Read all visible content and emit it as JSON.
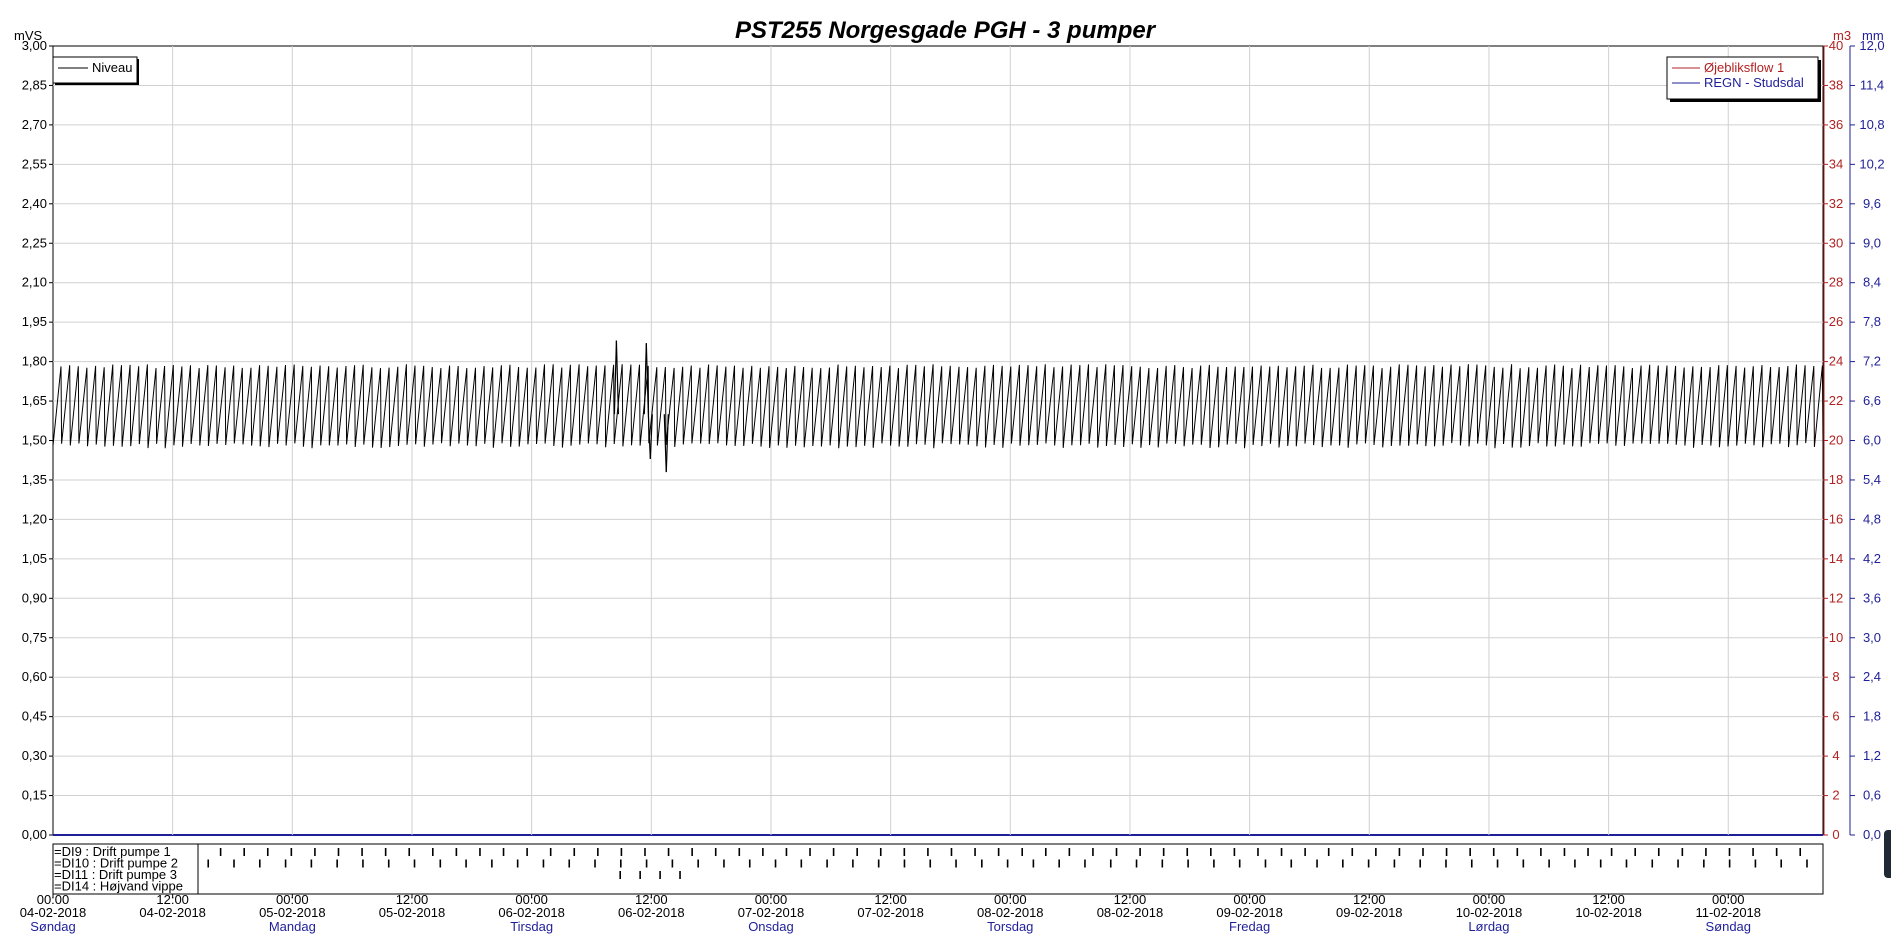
{
  "chart_data": {
    "type": "line",
    "title": "PST255 Norgesgade PGH - 3 pumper",
    "colors": {
      "level": "#000000",
      "flow": "#b22222",
      "rain": "#1f1f99",
      "grid": "#d0d0d0",
      "axis": "#000000"
    },
    "axes": {
      "left": {
        "unit": "mVS",
        "range": [
          0,
          3.0
        ],
        "ticks": [
          "3,00",
          "2,85",
          "2,70",
          "2,55",
          "2,40",
          "2,25",
          "2,10",
          "1,95",
          "1,80",
          "1,65",
          "1,50",
          "1,35",
          "1,20",
          "1,05",
          "0,90",
          "0,75",
          "0,60",
          "0,45",
          "0,30",
          "0,15",
          "0,00"
        ]
      },
      "right_flow": {
        "unit": "m3",
        "range": [
          0,
          40
        ],
        "ticks": [
          "40",
          "38",
          "36",
          "34",
          "32",
          "30",
          "28",
          "26",
          "24",
          "22",
          "20",
          "18",
          "16",
          "14",
          "12",
          "10",
          "8",
          "6",
          "4",
          "2",
          "0"
        ]
      },
      "right_rain": {
        "unit": "mm",
        "range": [
          0,
          12.0
        ],
        "ticks": [
          "12,0",
          "11,4",
          "10,8",
          "10,2",
          "9,6",
          "9,0",
          "8,4",
          "7,8",
          "7,2",
          "6,6",
          "6,0",
          "5,4",
          "4,8",
          "4,2",
          "3,6",
          "3,0",
          "2,4",
          "1,8",
          "1,2",
          "0,6",
          "0,0"
        ]
      }
    },
    "x": {
      "range_hours": [
        0,
        177.5
      ],
      "ticks": [
        {
          "time": "00:00",
          "date": "04-02-2018",
          "day": "Søndag"
        },
        {
          "time": "12:00",
          "date": "04-02-2018",
          "day": ""
        },
        {
          "time": "00:00",
          "date": "05-02-2018",
          "day": "Mandag"
        },
        {
          "time": "12:00",
          "date": "05-02-2018",
          "day": ""
        },
        {
          "time": "00:00",
          "date": "06-02-2018",
          "day": "Tirsdag"
        },
        {
          "time": "12:00",
          "date": "06-02-2018",
          "day": ""
        },
        {
          "time": "00:00",
          "date": "07-02-2018",
          "day": "Onsdag"
        },
        {
          "time": "12:00",
          "date": "07-02-2018",
          "day": ""
        },
        {
          "time": "00:00",
          "date": "08-02-2018",
          "day": "Torsdag"
        },
        {
          "time": "12:00",
          "date": "08-02-2018",
          "day": ""
        },
        {
          "time": "00:00",
          "date": "09-02-2018",
          "day": "Fredag"
        },
        {
          "time": "12:00",
          "date": "09-02-2018",
          "day": ""
        },
        {
          "time": "00:00",
          "date": "10-02-2018",
          "day": "Lørdag"
        },
        {
          "time": "12:00",
          "date": "10-02-2018",
          "day": ""
        },
        {
          "time": "00:00",
          "date": "11-02-2018",
          "day": "Søndag"
        }
      ]
    },
    "legend_left": [
      {
        "name": "Niveau",
        "color": "#000000"
      }
    ],
    "legend_right": [
      {
        "name": "Øjebliksflow 1",
        "color": "#b22222"
      },
      {
        "name": "REGN - Studsdal",
        "color": "#1f1f99"
      }
    ],
    "series": [
      {
        "name": "Niveau",
        "axis": "left",
        "pattern": "sawtooth",
        "min_level": 1.49,
        "max_level": 1.79,
        "cycles": 205,
        "spikes": [
          {
            "hour": 56.5,
            "value": 1.88
          },
          {
            "hour": 59.5,
            "value": 1.87
          },
          {
            "hour": 59.9,
            "value": 1.43
          },
          {
            "hour": 61.5,
            "value": 1.38
          }
        ]
      }
    ],
    "digital": [
      {
        "label": "=DI9 : Drift pumpe 1"
      },
      {
        "label": "=DI10 : Drift pumpe 2"
      },
      {
        "label": "=DI11 : Drift pumpe 3"
      },
      {
        "label": "=DI14 : Højvand vippe"
      }
    ]
  }
}
